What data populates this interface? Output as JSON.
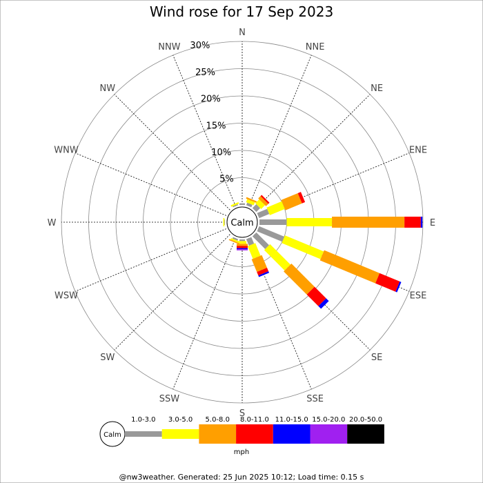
{
  "chart_data": {
    "type": "windrose",
    "title": "Wind rose for 17 Sep 2023",
    "directions": [
      "N",
      "NNE",
      "NE",
      "ENE",
      "E",
      "ESE",
      "SE",
      "SSE",
      "S",
      "SSW",
      "SW",
      "WSW",
      "W",
      "WNW",
      "NW",
      "NNW"
    ],
    "percent_ticks": [
      "5%",
      "10%",
      "15%",
      "20%",
      "25%",
      "30%"
    ],
    "rmax": 30,
    "calm_label": "Calm",
    "unit": "mph",
    "bins": [
      {
        "name": "1.0-3.0",
        "color": "#999999"
      },
      {
        "name": "3.0-5.0",
        "color": "#ffff00"
      },
      {
        "name": "5.0-8.0",
        "color": "#ff9f00"
      },
      {
        "name": "8.0-11.0",
        "color": "#ff0000"
      },
      {
        "name": "11.0-15.0",
        "color": "#0000ff"
      },
      {
        "name": "15.0-20.0",
        "color": "#a020f0"
      },
      {
        "name": "20.0-50.0",
        "color": "#000000"
      }
    ],
    "series": [
      {
        "direction": "N",
        "values": [
          0.3,
          0.0,
          0.0,
          0.0,
          0,
          0,
          0
        ]
      },
      {
        "direction": "NNE",
        "values": [
          0.5,
          0.6,
          0.3,
          0.0,
          0,
          0,
          0
        ]
      },
      {
        "direction": "NE",
        "values": [
          1.0,
          1.0,
          0.6,
          0.3,
          0,
          0,
          0
        ]
      },
      {
        "direction": "ENE",
        "values": [
          2.0,
          3.0,
          3.3,
          0.6,
          0,
          0,
          0
        ]
      },
      {
        "direction": "E",
        "values": [
          5.0,
          8.3,
          13.3,
          3.0,
          0.3,
          0,
          0
        ]
      },
      {
        "direction": "ESE",
        "values": [
          5.0,
          7.7,
          11.0,
          4.0,
          0.3,
          0,
          0
        ]
      },
      {
        "direction": "SE",
        "values": [
          3.3,
          5.3,
          6.0,
          3.0,
          0.7,
          0,
          0
        ]
      },
      {
        "direction": "SSE",
        "values": [
          1.3,
          2.5,
          2.5,
          0.7,
          0.3,
          0,
          0
        ]
      },
      {
        "direction": "S",
        "values": [
          0.3,
          0.5,
          0.4,
          0.4,
          0.2,
          0.2,
          0
        ]
      },
      {
        "direction": "SSW",
        "values": [
          0.3,
          0.3,
          0.2,
          0.0,
          0,
          0,
          0
        ]
      },
      {
        "direction": "SW",
        "values": [
          0.0,
          0.0,
          0.0,
          0.0,
          0,
          0,
          0
        ]
      },
      {
        "direction": "WSW",
        "values": [
          0.0,
          0.0,
          0.0,
          0.0,
          0,
          0,
          0
        ]
      },
      {
        "direction": "W",
        "values": [
          0.1,
          0.2,
          0.0,
          0.0,
          0,
          0,
          0
        ]
      },
      {
        "direction": "WNW",
        "values": [
          0.0,
          0.0,
          0.0,
          0.0,
          0,
          0,
          0
        ]
      },
      {
        "direction": "NW",
        "values": [
          0.0,
          0.0,
          0.0,
          0.0,
          0,
          0,
          0
        ]
      },
      {
        "direction": "NNW",
        "values": [
          0.2,
          0.3,
          0.0,
          0.0,
          0,
          0,
          0
        ]
      }
    ]
  },
  "footer": "@nw3weather. Generated: 25 Jun 2025 10:12; Load time: 0.15 s"
}
